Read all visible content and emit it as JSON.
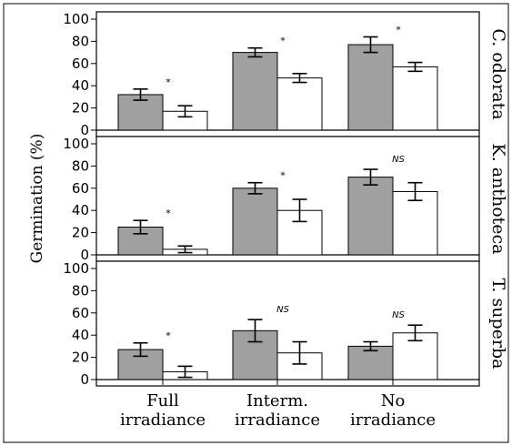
{
  "chart_data": {
    "type": "bar",
    "ylabel": "Germination (%)",
    "categories": [
      "Full irradiance",
      "Interm. irradiance",
      "No irradiance"
    ],
    "category_lines": [
      [
        "Full",
        "irradiance"
      ],
      [
        "Interm.",
        "irradiance"
      ],
      [
        "No",
        "irradiance"
      ]
    ],
    "ylim": [
      0,
      100
    ],
    "yticks": [
      "0",
      "20",
      "40",
      "60",
      "80",
      "100"
    ],
    "series_colors": [
      "#a0a0a0",
      "#ffffff"
    ],
    "panels": [
      {
        "species": "C. odorata",
        "series": [
          {
            "values": [
              32,
              70,
              77
            ],
            "errors": [
              5,
              4,
              7
            ]
          },
          {
            "values": [
              17,
              47,
              57
            ],
            "errors": [
              5,
              4,
              4
            ]
          }
        ],
        "significance": [
          "*",
          "*",
          "*"
        ]
      },
      {
        "species": "K. anthoteca",
        "series": [
          {
            "values": [
              25,
              60,
              70
            ],
            "errors": [
              6,
              5,
              7
            ]
          },
          {
            "values": [
              5,
              40,
              57
            ],
            "errors": [
              3,
              10,
              8
            ]
          }
        ],
        "significance": [
          "*",
          "*",
          "NS"
        ]
      },
      {
        "species": "T. superba",
        "series": [
          {
            "values": [
              27,
              44,
              30
            ],
            "errors": [
              6,
              10,
              4
            ]
          },
          {
            "values": [
              7,
              24,
              42
            ],
            "errors": [
              5,
              10,
              7
            ]
          }
        ],
        "significance": [
          "*",
          "NS",
          "NS"
        ]
      }
    ]
  }
}
